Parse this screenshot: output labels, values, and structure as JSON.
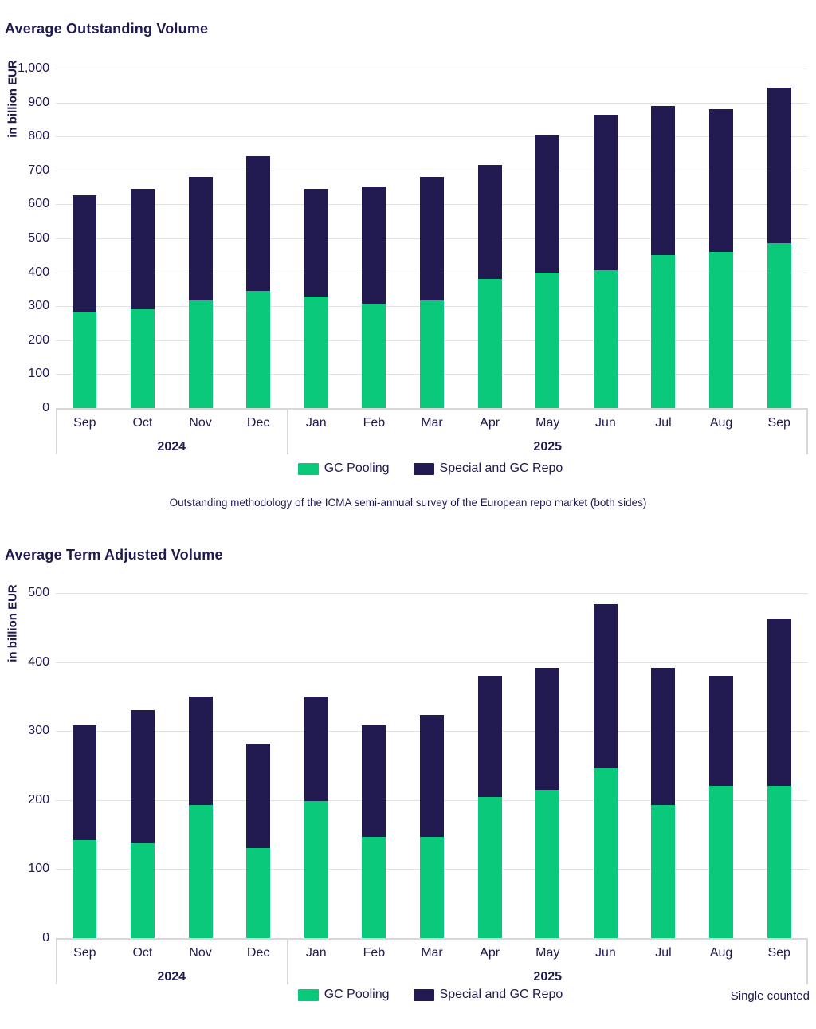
{
  "colors": {
    "text_navy": "#1f1a4f",
    "bar_navy": "#221b52",
    "bar_green": "#0bc97a",
    "gridline": "#e2e2e2",
    "axis_line": "#d8d8d8"
  },
  "footnote": "Outstanding methodology of the ICMA semi-annual survey of the European repo market (both sides)",
  "single_counted_note": "Single counted",
  "chart_data": [
    {
      "type": "bar",
      "stacked": true,
      "title": "Average Outstanding Volume",
      "ylabel": "in billion EUR",
      "ylim": [
        0,
        1000
      ],
      "ytick_step": 100,
      "grid": true,
      "legend_position": "bottom",
      "categories": [
        "Sep",
        "Oct",
        "Nov",
        "Dec",
        "Jan",
        "Feb",
        "Mar",
        "Apr",
        "May",
        "Jun",
        "Jul",
        "Aug",
        "Sep"
      ],
      "groups": [
        {
          "label": "2024",
          "span": 4
        },
        {
          "label": "2025",
          "span": 9
        }
      ],
      "series": [
        {
          "name": "GC Pooling",
          "color": "#0bc97a",
          "values": [
            283,
            292,
            318,
            345,
            328,
            308,
            318,
            380,
            399,
            406,
            450,
            459,
            487
          ]
        },
        {
          "name": "Special and GC Repo",
          "color": "#221b52",
          "values": [
            344,
            353,
            362,
            396,
            317,
            345,
            362,
            335,
            403,
            457,
            440,
            422,
            456
          ]
        }
      ],
      "stacked_totals": [
        627,
        645,
        680,
        741,
        645,
        653,
        680,
        715,
        802,
        863,
        890,
        881,
        943
      ]
    },
    {
      "type": "bar",
      "stacked": true,
      "title": "Average Term Adjusted Volume",
      "ylabel": "in billion EUR",
      "ylim": [
        0,
        500
      ],
      "ytick_step": 100,
      "grid": true,
      "legend_position": "bottom",
      "categories": [
        "Sep",
        "Oct",
        "Nov",
        "Dec",
        "Jan",
        "Feb",
        "Mar",
        "Apr",
        "May",
        "Jun",
        "Jul",
        "Aug",
        "Sep"
      ],
      "groups": [
        {
          "label": "2024",
          "span": 4
        },
        {
          "label": "2025",
          "span": 9
        }
      ],
      "series": [
        {
          "name": "GC Pooling",
          "color": "#0bc97a",
          "values": [
            142,
            137,
            193,
            131,
            199,
            147,
            147,
            204,
            215,
            246,
            193,
            220,
            220
          ]
        },
        {
          "name": "Special and GC Repo",
          "color": "#221b52",
          "values": [
            166,
            193,
            157,
            151,
            151,
            161,
            176,
            176,
            176,
            238,
            198,
            160,
            243
          ]
        }
      ],
      "stacked_totals": [
        308,
        330,
        350,
        282,
        350,
        308,
        323,
        380,
        391,
        484,
        391,
        380,
        463
      ]
    }
  ]
}
